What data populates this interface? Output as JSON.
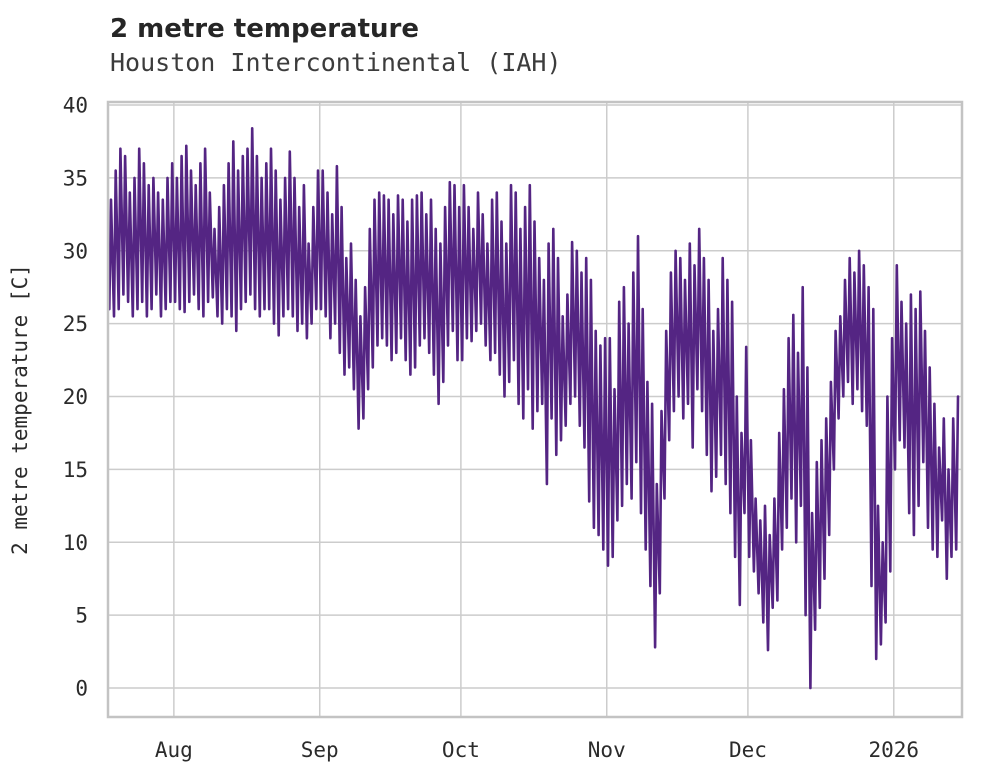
{
  "chart_data": {
    "type": "line",
    "title": "2 metre temperature",
    "subtitle": "Houston Intercontinental (IAH)",
    "ylabel": "2 metre temperature [C]",
    "xlabel": "",
    "grid": true,
    "legend": "none",
    "line_color": "#542583",
    "grid_color": "#cccccc",
    "spine_color": "#c3c3c3",
    "ylim": [
      -2,
      40.2
    ],
    "yticks": [
      0,
      5,
      10,
      15,
      20,
      25,
      30,
      35,
      40
    ],
    "x_axis": {
      "tick_labels": [
        "Aug",
        "Sep",
        "Oct",
        "Nov",
        "Dec",
        "2026"
      ],
      "tick_positions_days": [
        14,
        45,
        75,
        106,
        136,
        167
      ],
      "total_days": 181.5
    },
    "series": [
      {
        "name": "daily_min_C",
        "values": [
          26.0,
          25.5,
          26.0,
          27.0,
          26.5,
          25.5,
          26.0,
          26.5,
          25.5,
          26.0,
          27.0,
          25.5,
          26.0,
          26.5,
          26.5,
          26.0,
          25.8,
          26.5,
          27.0,
          26.0,
          25.5,
          26.5,
          26.8,
          25.5,
          25.0,
          26.0,
          25.5,
          24.5,
          26.0,
          26.5,
          27.0,
          26.0,
          25.5,
          26.0,
          26.0,
          25.0,
          24.2,
          25.5,
          26.0,
          25.5,
          24.5,
          25.0,
          24.0,
          25.0,
          26.0,
          26.0,
          25.5,
          24.0,
          25.0,
          23.0,
          21.5,
          22.0,
          20.5,
          17.8,
          18.5,
          20.5,
          22.0,
          23.5,
          24.0,
          23.5,
          22.5,
          23.0,
          24.0,
          22.5,
          21.5,
          22.0,
          23.5,
          24.0,
          23.0,
          21.5,
          19.5,
          21.0,
          23.5,
          24.5,
          22.5,
          22.5,
          24.0,
          23.8,
          24.5,
          25.0,
          23.5,
          22.5,
          23.0,
          21.5,
          20.0,
          21.0,
          22.5,
          19.5,
          18.5,
          20.5,
          17.8,
          19.0,
          19.5,
          14.0,
          18.5,
          16.0,
          17.0,
          18.0,
          19.5,
          20.0,
          18.0,
          16.5,
          12.8,
          11.0,
          10.5,
          9.5,
          8.4,
          9.0,
          11.5,
          12.5,
          14.0,
          13.0,
          15.5,
          12.0,
          9.5,
          7.0,
          2.8,
          6.5,
          13.0,
          17.0,
          19.0,
          20.0,
          18.5,
          19.5,
          16.5,
          20.5,
          19.0,
          16.0,
          13.5,
          14.5,
          16.0,
          14.0,
          12.0,
          9.0,
          5.7,
          12.0,
          9.0,
          8.0,
          6.5,
          4.5,
          2.6,
          5.5,
          6.0,
          9.5,
          11.0,
          13.0,
          10.0,
          12.5,
          5.0,
          0.0,
          4.0,
          5.5,
          7.5,
          10.5,
          15.0,
          18.5,
          20.0,
          21.0,
          19.5,
          20.5,
          19.0,
          18.0,
          7.0,
          2.0,
          3.0,
          4.5,
          8.0,
          15.0,
          17.0,
          16.5,
          12.0,
          10.5,
          12.5,
          15.5,
          11.0,
          9.5,
          9.0,
          11.5,
          7.5,
          9.0,
          9.5
        ]
      },
      {
        "name": "daily_max_C",
        "values": [
          33.5,
          35.5,
          37.0,
          36.5,
          34.0,
          35.0,
          37.0,
          36.0,
          34.5,
          35.0,
          34.0,
          33.5,
          35.0,
          36.0,
          35.0,
          36.5,
          37.2,
          35.5,
          34.5,
          36.0,
          37.0,
          34.0,
          31.5,
          33.0,
          34.5,
          36.0,
          37.5,
          35.5,
          36.5,
          37.0,
          38.4,
          36.5,
          35.0,
          36.0,
          37.0,
          35.5,
          33.5,
          35.0,
          36.8,
          35.0,
          33.0,
          34.5,
          30.5,
          33.0,
          35.5,
          35.5,
          34.0,
          32.5,
          35.8,
          33.0,
          29.5,
          30.5,
          28.0,
          25.5,
          27.5,
          31.5,
          33.5,
          34.0,
          33.8,
          33.5,
          32.5,
          33.8,
          33.5,
          32.0,
          33.5,
          33.8,
          34.0,
          32.5,
          33.5,
          31.5,
          30.5,
          33.0,
          34.7,
          34.5,
          33.0,
          34.5,
          33.0,
          31.5,
          34.0,
          32.5,
          30.5,
          33.5,
          34.0,
          32.0,
          30.5,
          34.5,
          34.0,
          31.5,
          33.0,
          34.5,
          32.0,
          29.5,
          28.0,
          30.5,
          31.5,
          29.5,
          25.5,
          27.0,
          30.6,
          30.0,
          28.5,
          29.5,
          28.0,
          24.5,
          23.5,
          24.0,
          24.0,
          20.5,
          26.5,
          27.5,
          25.0,
          28.5,
          31.0,
          26.0,
          21.0,
          19.5,
          14.0,
          19.0,
          24.5,
          28.5,
          30.0,
          29.5,
          28.0,
          30.5,
          29.0,
          31.5,
          29.5,
          28.0,
          24.5,
          26.0,
          29.5,
          28.0,
          26.5,
          20.0,
          17.5,
          23.4,
          17.0,
          13.0,
          11.5,
          12.5,
          10.5,
          13.0,
          17.5,
          20.5,
          24.0,
          25.6,
          23.0,
          27.5,
          22.0,
          12.0,
          15.5,
          17.0,
          18.5,
          21.0,
          24.5,
          25.5,
          28.0,
          29.5,
          28.5,
          30.0,
          29.0,
          27.5,
          26.0,
          12.5,
          10.0,
          20.0,
          24.0,
          29.0,
          26.5,
          25.0,
          27.0,
          26.0,
          27.2,
          24.5,
          22.0,
          19.5,
          16.5,
          18.5,
          15.0,
          18.5,
          20.0
        ]
      }
    ]
  }
}
